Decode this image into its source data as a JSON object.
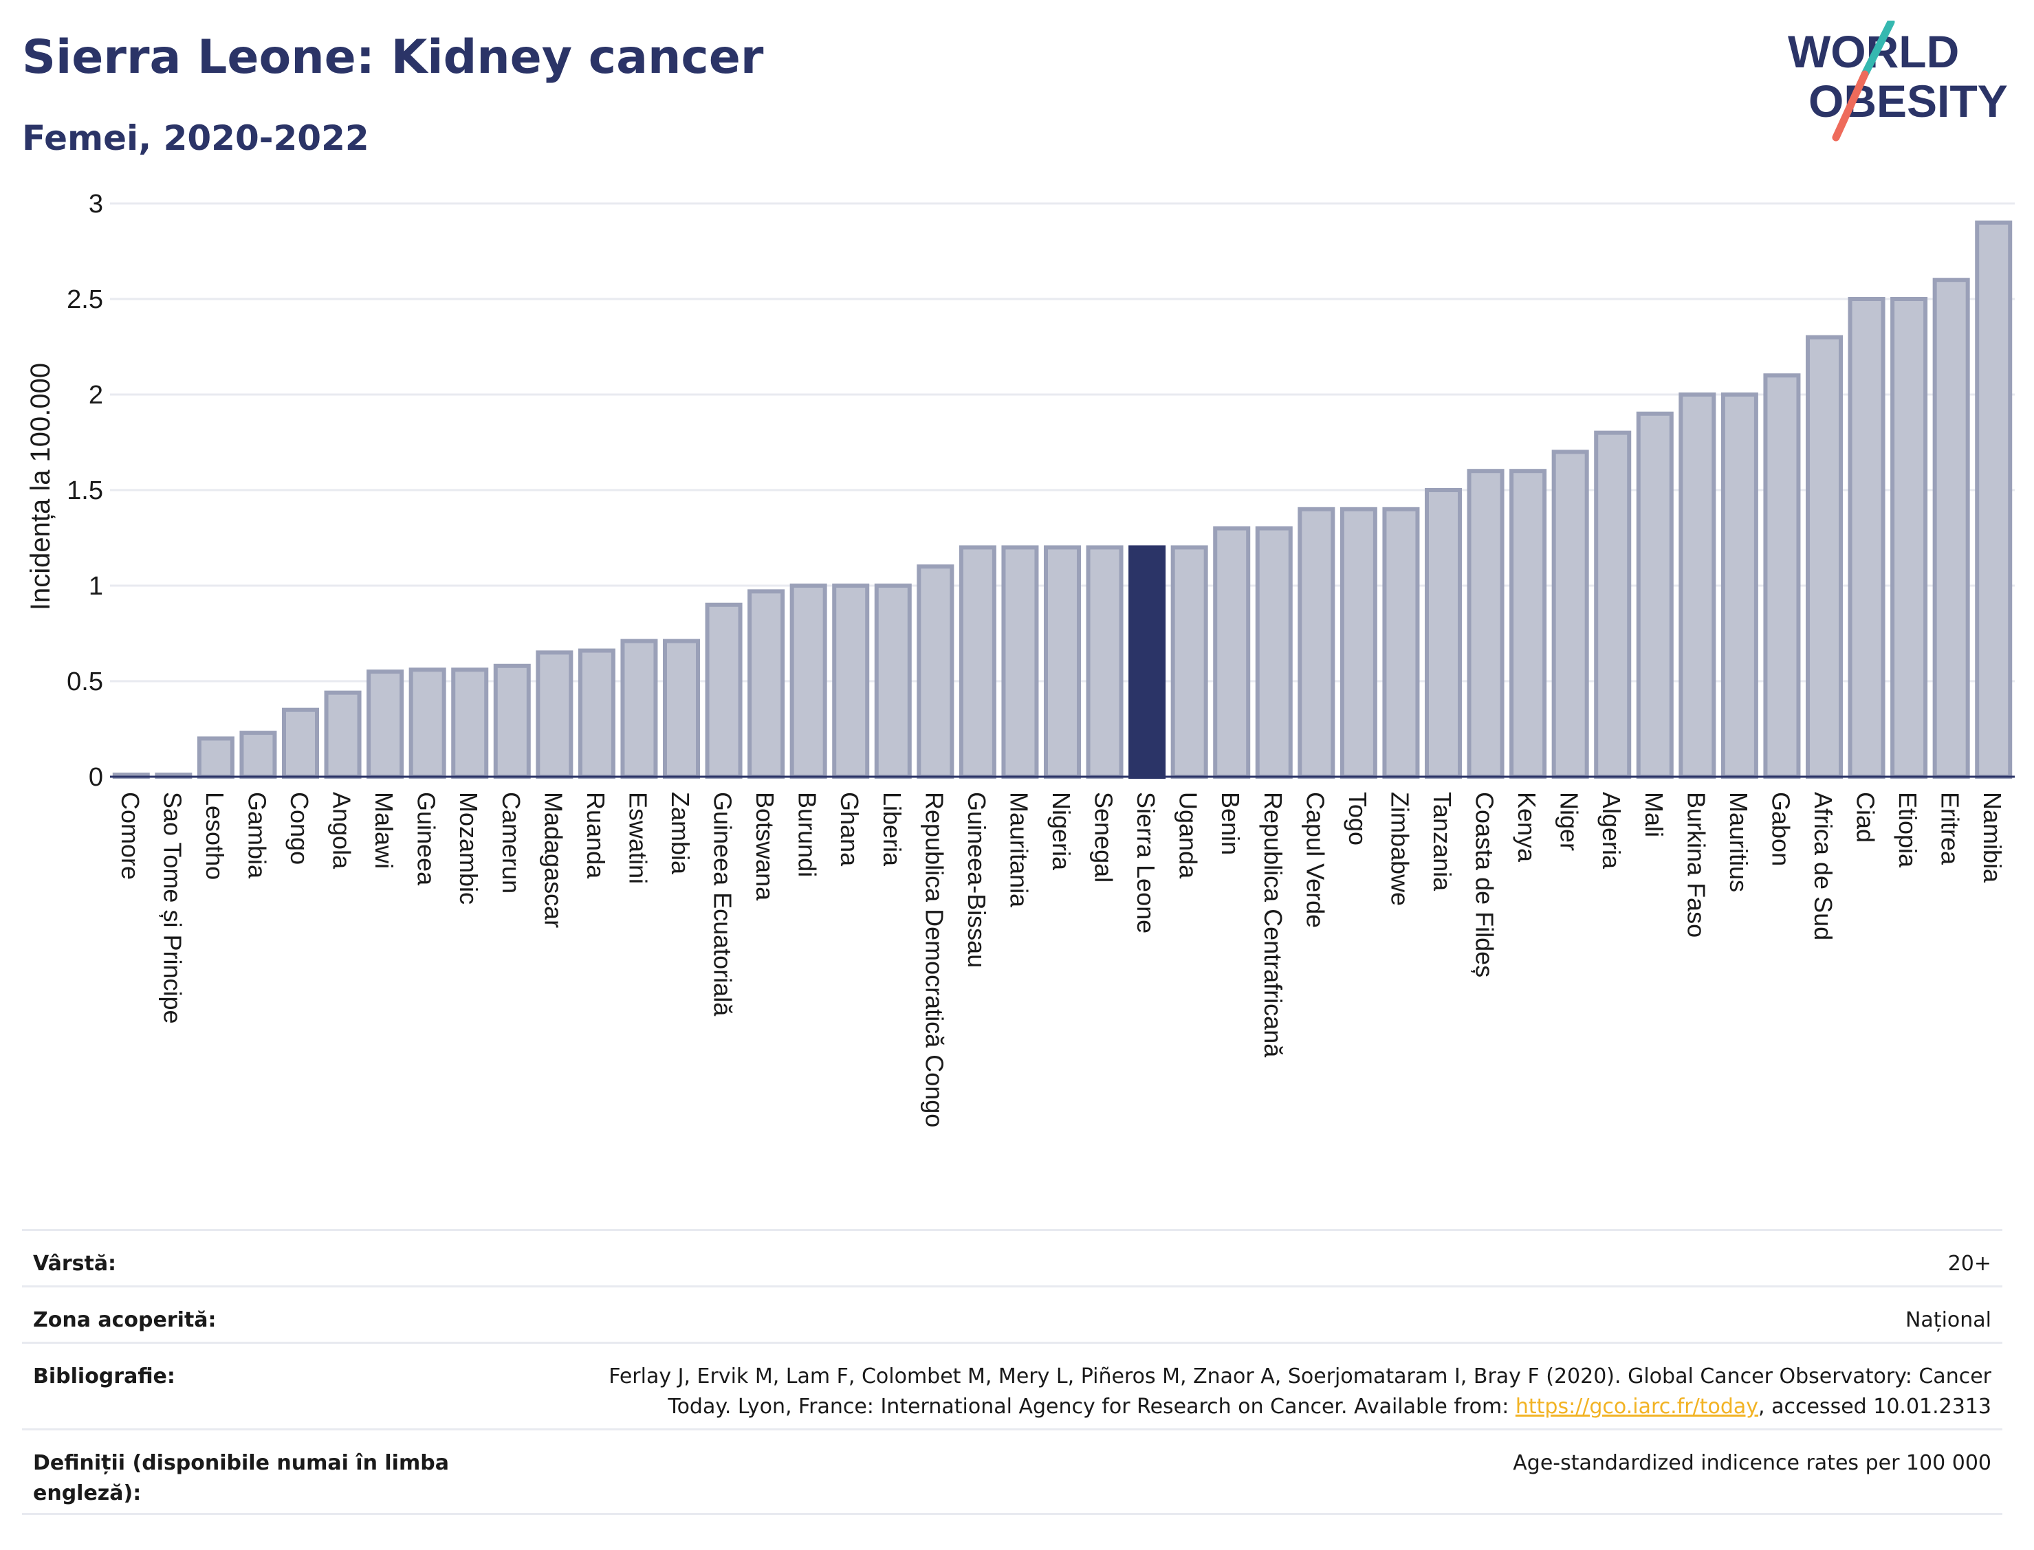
{
  "header": {
    "title": "Sierra Leone: Kidney cancer",
    "subtitle": "Femei, 2020-2022"
  },
  "logo": {
    "line1": "WORLD",
    "line2": "OBESITY"
  },
  "colors": {
    "bar": "#bfc3d1",
    "bar_stroke": "#9aa0b8",
    "highlight": "#2b3467",
    "grid": "#e8eaf0",
    "title": "#2b3467"
  },
  "chart_data": {
    "type": "bar",
    "ylabel": "Incidența la 100.000",
    "ylim": [
      0,
      3
    ],
    "yticks": [
      0,
      0.5,
      1,
      1.5,
      2,
      2.5,
      3
    ],
    "ytick_labels": [
      "0",
      "0.5",
      "1",
      "1.5",
      "2",
      "2.5",
      "3"
    ],
    "highlight": "Sierra Leone",
    "grid": true,
    "categories": [
      "Comore",
      "Sao Tome și Principe",
      "Lesotho",
      "Gambia",
      "Congo",
      "Angola",
      "Malawi",
      "Guineea",
      "Mozambic",
      "Camerun",
      "Madagascar",
      "Ruanda",
      "Eswatini",
      "Zambia",
      "Guineea Ecuatorială",
      "Botswana",
      "Burundi",
      "Ghana",
      "Liberia",
      "Republica Democratică Congo",
      "Guineea-Bissau",
      "Mauritania",
      "Nigeria",
      "Senegal",
      "Sierra Leone",
      "Uganda",
      "Benin",
      "Republica Centrafricană",
      "Capul Verde",
      "Togo",
      "Zimbabwe",
      "Tanzania",
      "Coasta de Fildeș",
      "Kenya",
      "Niger",
      "Algeria",
      "Mali",
      "Burkina Faso",
      "Mauritius",
      "Gabon",
      "Africa de Sud",
      "Ciad",
      "Etiopia",
      "Eritrea",
      "Namibia"
    ],
    "values": [
      0.01,
      0.01,
      0.2,
      0.23,
      0.35,
      0.44,
      0.55,
      0.56,
      0.56,
      0.58,
      0.65,
      0.66,
      0.71,
      0.71,
      0.9,
      0.97,
      1.0,
      1.0,
      1.0,
      1.1,
      1.2,
      1.2,
      1.2,
      1.2,
      1.2,
      1.2,
      1.3,
      1.3,
      1.4,
      1.4,
      1.4,
      1.5,
      1.6,
      1.6,
      1.7,
      1.8,
      1.9,
      2.0,
      2.0,
      2.1,
      2.3,
      2.5,
      2.5,
      2.6,
      2.9
    ]
  },
  "meta": {
    "age_label": "Vârstă:",
    "age_value": "20+",
    "coverage_label": "Zona acoperită:",
    "coverage_value": "Național",
    "bib_label": "Bibliografie:",
    "bib_text_1": "Ferlay J, Ervik M, Lam F, Colombet M, Mery L, Piñeros M, Znaor A, Soerjomataram I, Bray F (2020). Global Cancer Observatory: Cancer",
    "bib_text_2": "Today. Lyon, France: International Agency for Research on Cancer. Available from: ",
    "bib_link": "https://gco.iarc.fr/today",
    "bib_text_3": ", accessed 10.01.2313",
    "def_label": "Definiții (disponibile numai în limba engleză):",
    "def_value": "Age-standardized indicence rates per 100 000"
  }
}
